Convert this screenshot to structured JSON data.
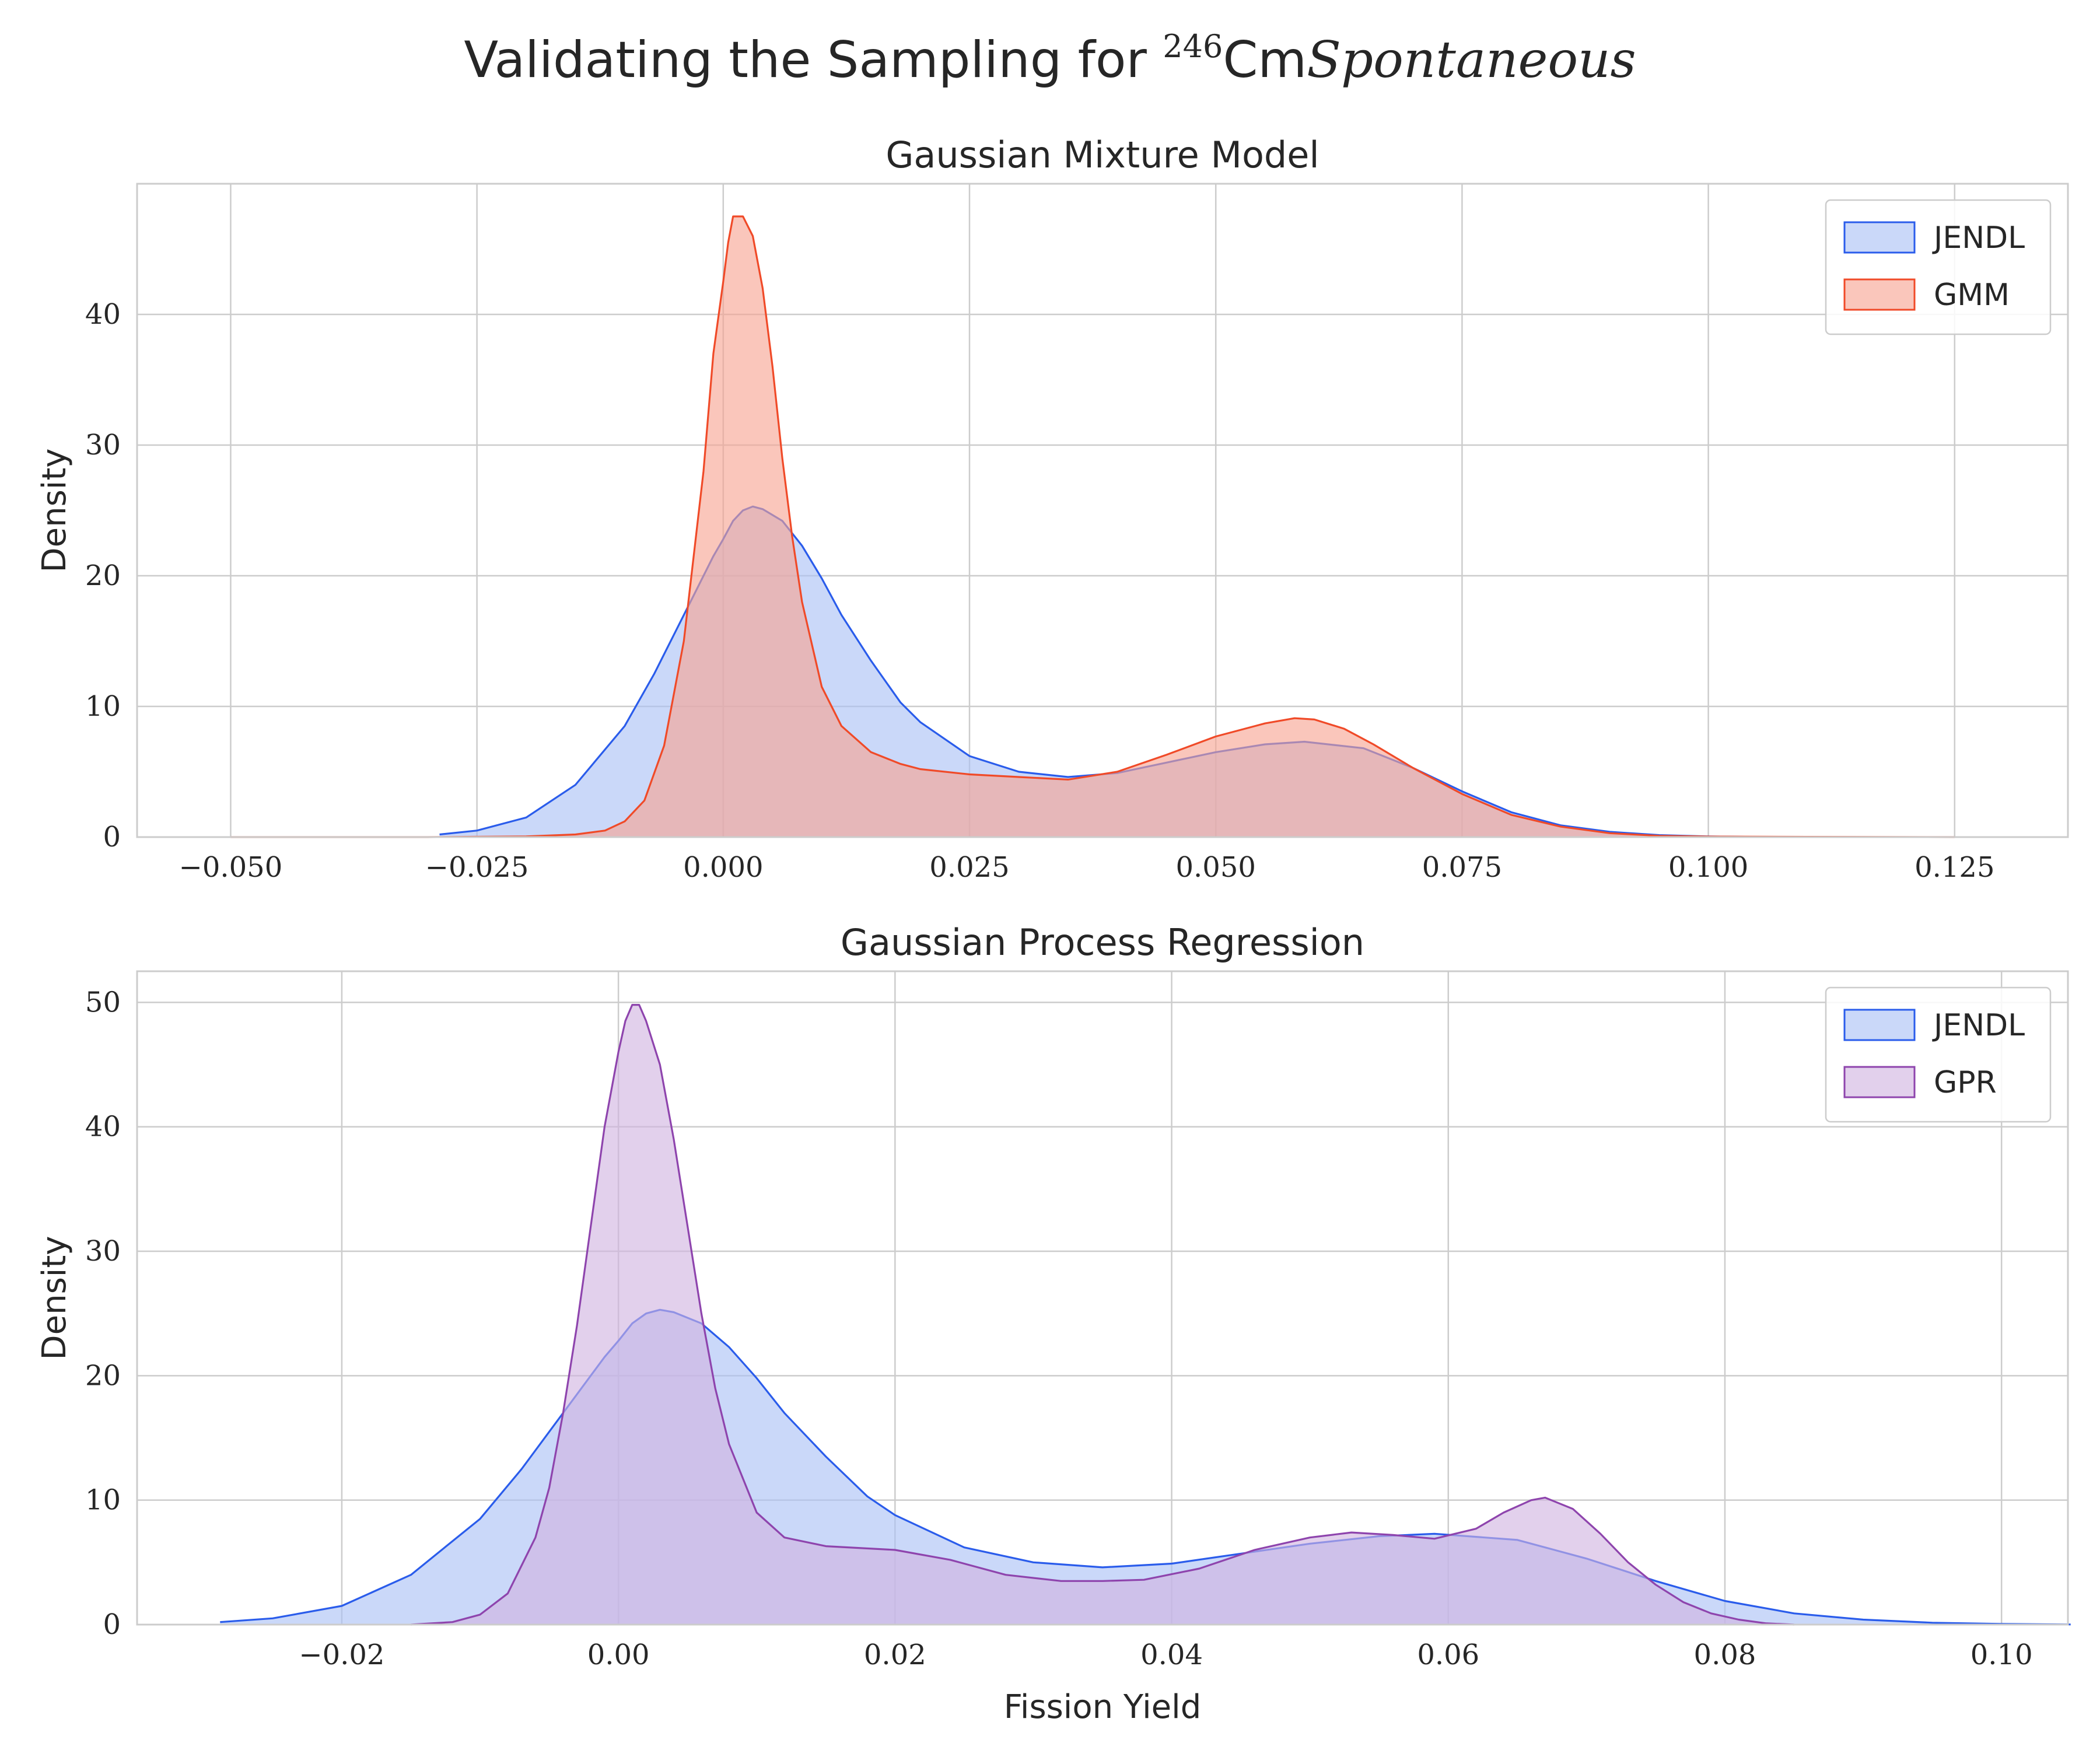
{
  "figure": {
    "suptitle_prefix": "Validating the Sampling for ",
    "suptitle_superscript": "246",
    "suptitle_element": "Cm",
    "suptitle_italic": "Spontaneous"
  },
  "chart_data": [
    {
      "type": "area",
      "title": "Gaussian Mixture Model",
      "xlabel": "",
      "ylabel": "Density",
      "xlim": [
        -0.0595,
        0.1365
      ],
      "ylim": [
        0,
        50
      ],
      "xticks": [
        -0.05,
        -0.025,
        0.0,
        0.025,
        0.05,
        0.075,
        0.1,
        0.125
      ],
      "xtick_labels": [
        "−0.050",
        "−0.025",
        "0.000",
        "0.025",
        "0.050",
        "0.075",
        "0.100",
        "0.125"
      ],
      "yticks": [
        0,
        10,
        20,
        30,
        40
      ],
      "ytick_labels": [
        "0",
        "10",
        "20",
        "30",
        "40"
      ],
      "grid": true,
      "legend": "top-right",
      "series": [
        {
          "name": "JENDL",
          "color": "#2a5ceb",
          "fill": "#a9c0f5",
          "points": [
            [
              -0.0288,
              0.2
            ],
            [
              -0.025,
              0.5
            ],
            [
              -0.02,
              1.5
            ],
            [
              -0.015,
              4
            ],
            [
              -0.01,
              8.5
            ],
            [
              -0.007,
              12.5
            ],
            [
              -0.005,
              15.5
            ],
            [
              -0.003,
              18.5
            ],
            [
              -0.001,
              21.5
            ],
            [
              0.0,
              22.8
            ],
            [
              0.001,
              24.2
            ],
            [
              0.002,
              25
            ],
            [
              0.003,
              25.3
            ],
            [
              0.004,
              25.1
            ],
            [
              0.006,
              24.2
            ],
            [
              0.008,
              22.3
            ],
            [
              0.01,
              19.8
            ],
            [
              0.012,
              17
            ],
            [
              0.015,
              13.5
            ],
            [
              0.018,
              10.3
            ],
            [
              0.02,
              8.8
            ],
            [
              0.025,
              6.2
            ],
            [
              0.03,
              5
            ],
            [
              0.035,
              4.6
            ],
            [
              0.04,
              4.9
            ],
            [
              0.045,
              5.7
            ],
            [
              0.05,
              6.5
            ],
            [
              0.055,
              7.1
            ],
            [
              0.059,
              7.3
            ],
            [
              0.065,
              6.8
            ],
            [
              0.07,
              5.3
            ],
            [
              0.075,
              3.5
            ],
            [
              0.08,
              1.9
            ],
            [
              0.085,
              0.9
            ],
            [
              0.09,
              0.4
            ],
            [
              0.095,
              0.15
            ],
            [
              0.1,
              0.05
            ],
            [
              0.105,
              0.01
            ]
          ]
        },
        {
          "name": "GMM",
          "color": "#f04a28",
          "fill": "#f7a391",
          "points": [
            [
              -0.05,
              0
            ],
            [
              -0.03,
              0
            ],
            [
              -0.02,
              0.05
            ],
            [
              -0.015,
              0.2
            ],
            [
              -0.012,
              0.5
            ],
            [
              -0.01,
              1.2
            ],
            [
              -0.008,
              2.8
            ],
            [
              -0.006,
              7
            ],
            [
              -0.004,
              15
            ],
            [
              -0.002,
              28
            ],
            [
              -0.001,
              37
            ],
            [
              0.0,
              42.5
            ],
            [
              0.0005,
              45.5
            ],
            [
              0.001,
              47.5
            ],
            [
              0.002,
              47.5
            ],
            [
              0.003,
              46
            ],
            [
              0.004,
              42
            ],
            [
              0.005,
              36
            ],
            [
              0.006,
              29
            ],
            [
              0.007,
              23
            ],
            [
              0.008,
              18
            ],
            [
              0.01,
              11.5
            ],
            [
              0.012,
              8.5
            ],
            [
              0.015,
              6.5
            ],
            [
              0.018,
              5.6
            ],
            [
              0.02,
              5.2
            ],
            [
              0.025,
              4.8
            ],
            [
              0.03,
              4.6
            ],
            [
              0.035,
              4.4
            ],
            [
              0.04,
              5
            ],
            [
              0.045,
              6.3
            ],
            [
              0.05,
              7.7
            ],
            [
              0.055,
              8.7
            ],
            [
              0.058,
              9.1
            ],
            [
              0.06,
              9
            ],
            [
              0.063,
              8.3
            ],
            [
              0.066,
              7.1
            ],
            [
              0.07,
              5.3
            ],
            [
              0.075,
              3.3
            ],
            [
              0.08,
              1.7
            ],
            [
              0.085,
              0.8
            ],
            [
              0.09,
              0.3
            ],
            [
              0.095,
              0.1
            ],
            [
              0.1,
              0.04
            ],
            [
              0.11,
              0.02
            ],
            [
              0.125,
              0
            ]
          ]
        }
      ]
    },
    {
      "type": "area",
      "title": "Gaussian Process Regression",
      "xlabel": "Fission Yield",
      "ylabel": "Density",
      "xlim": [
        -0.0348,
        0.1048
      ],
      "ylim": [
        0,
        52.5
      ],
      "xticks": [
        -0.02,
        0.0,
        0.02,
        0.04,
        0.06,
        0.08,
        0.1
      ],
      "xtick_labels": [
        "−0.02",
        "0.00",
        "0.02",
        "0.04",
        "0.06",
        "0.08",
        "0.10"
      ],
      "yticks": [
        0,
        10,
        20,
        30,
        40,
        50
      ],
      "ytick_labels": [
        "0",
        "10",
        "20",
        "30",
        "40",
        "50"
      ],
      "grid": true,
      "legend": "top-right",
      "series": [
        {
          "name": "JENDL",
          "color": "#2a5ceb",
          "fill": "#a9c0f5",
          "points": [
            [
              -0.0288,
              0.2
            ],
            [
              -0.025,
              0.5
            ],
            [
              -0.02,
              1.5
            ],
            [
              -0.015,
              4
            ],
            [
              -0.01,
              8.5
            ],
            [
              -0.007,
              12.5
            ],
            [
              -0.005,
              15.5
            ],
            [
              -0.003,
              18.5
            ],
            [
              -0.001,
              21.5
            ],
            [
              0.0,
              22.8
            ],
            [
              0.001,
              24.2
            ],
            [
              0.002,
              25
            ],
            [
              0.003,
              25.3
            ],
            [
              0.004,
              25.1
            ],
            [
              0.006,
              24.2
            ],
            [
              0.008,
              22.3
            ],
            [
              0.01,
              19.8
            ],
            [
              0.012,
              17
            ],
            [
              0.015,
              13.5
            ],
            [
              0.018,
              10.3
            ],
            [
              0.02,
              8.8
            ],
            [
              0.025,
              6.2
            ],
            [
              0.03,
              5
            ],
            [
              0.035,
              4.6
            ],
            [
              0.04,
              4.9
            ],
            [
              0.045,
              5.7
            ],
            [
              0.05,
              6.5
            ],
            [
              0.055,
              7.1
            ],
            [
              0.059,
              7.3
            ],
            [
              0.065,
              6.8
            ],
            [
              0.07,
              5.3
            ],
            [
              0.075,
              3.5
            ],
            [
              0.08,
              1.9
            ],
            [
              0.085,
              0.9
            ],
            [
              0.09,
              0.4
            ],
            [
              0.095,
              0.15
            ],
            [
              0.1,
              0.05
            ],
            [
              0.105,
              0.01
            ]
          ]
        },
        {
          "name": "GPR",
          "color": "#8e44ad",
          "fill": "#d1b3e0",
          "points": [
            [
              -0.015,
              0
            ],
            [
              -0.012,
              0.2
            ],
            [
              -0.01,
              0.8
            ],
            [
              -0.008,
              2.5
            ],
            [
              -0.006,
              7
            ],
            [
              -0.005,
              11
            ],
            [
              -0.004,
              17
            ],
            [
              -0.003,
              24
            ],
            [
              -0.002,
              32
            ],
            [
              -0.001,
              40
            ],
            [
              0.0,
              46
            ],
            [
              0.0005,
              48.5
            ],
            [
              0.001,
              49.8
            ],
            [
              0.0015,
              49.8
            ],
            [
              0.002,
              48.5
            ],
            [
              0.003,
              45
            ],
            [
              0.004,
              39
            ],
            [
              0.005,
              32
            ],
            [
              0.006,
              25
            ],
            [
              0.007,
              19
            ],
            [
              0.008,
              14.5
            ],
            [
              0.01,
              9
            ],
            [
              0.012,
              7
            ],
            [
              0.015,
              6.3
            ],
            [
              0.02,
              6
            ],
            [
              0.024,
              5.2
            ],
            [
              0.028,
              4
            ],
            [
              0.032,
              3.5
            ],
            [
              0.035,
              3.5
            ],
            [
              0.038,
              3.6
            ],
            [
              0.042,
              4.5
            ],
            [
              0.046,
              6
            ],
            [
              0.05,
              7
            ],
            [
              0.053,
              7.4
            ],
            [
              0.056,
              7.2
            ],
            [
              0.059,
              6.9
            ],
            [
              0.062,
              7.7
            ],
            [
              0.064,
              9
            ],
            [
              0.066,
              10
            ],
            [
              0.067,
              10.2
            ],
            [
              0.069,
              9.3
            ],
            [
              0.071,
              7.3
            ],
            [
              0.073,
              5
            ],
            [
              0.075,
              3.2
            ],
            [
              0.077,
              1.8
            ],
            [
              0.079,
              0.9
            ],
            [
              0.081,
              0.4
            ],
            [
              0.083,
              0.1
            ],
            [
              0.085,
              0
            ]
          ]
        }
      ]
    }
  ]
}
